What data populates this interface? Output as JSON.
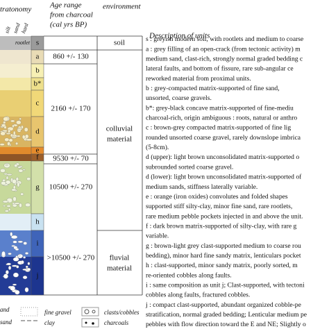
{
  "header": {
    "stratonomy": "tratonomy",
    "grain_sizes": [
      "silt",
      "sand",
      "hard"
    ],
    "rootlet": "rootlet",
    "age_heading": [
      "Age range",
      "from charcoal",
      "(cal yrs BP)"
    ],
    "environment_heading": "environment",
    "description_heading": "Description of units"
  },
  "units": [
    "s",
    "a",
    "b",
    "b*",
    "c",
    "d",
    "e",
    "f",
    "g",
    "h",
    "i",
    "j"
  ],
  "ages": [
    "860 +/- 130",
    "2160 +/- 170",
    "9530 +/- 70",
    "10500 +/- 270",
    ">10500 +/- 270"
  ],
  "environments": [
    [
      "soil"
    ],
    [
      "colluvial",
      "material"
    ],
    [
      "fluvial",
      "material"
    ]
  ],
  "descriptions": [
    "s : greyish modern soil, with rootlets and medium to coarse",
    "a : grey filling of an open-crack (from tectonic activity) m",
    "medium sand, clast-rich, strongly normal graded bedding c",
    "lateral faults, and bottom of fissure, rare sub-angular ce",
    "reworked material from proximal units.",
    "b   : grey-compacted matrix-supported of fine sand,",
    "unsorted, coarse gravels.",
    "b*:  grey-black concave matrix-supported of fine-mediu",
    "charcoal-rich, origin ambiguous : roots, natural or anthro",
    "c : brown-grey compacted matrix-supported of fine lig",
    "rounded unsorted coarse gravel, rarely downslope imbrica",
    "(5-8cm).",
    "d (upper): light brown unconsolidated matrix-supported o",
    "subrounded sorted coarse gravel.",
    "d (lower): light brown unconsolidated matrix-supported of",
    "medium sands, stiffness laterally variable.",
    "e : orange (iron oxides) convolutes and folded shapes",
    "supported stiff silty-clay, minor fine sand, rare rootlets,",
    "rare medium pebble pockets injected in and above the unit.",
    "f : dark brown matrix-supported of silty-clay, with rare g",
    "variable.",
    "g : brown-light grey clast-supported medium to coarse rou",
    "bedding), minor hard fine sandy matrix, lenticulars pocket",
    "h : clast-supported, minor sandy matrix, poorly sorted, m",
    "re-oriented cobbles along faults.",
    "i : same composition as unit j; Clast-supported, with tectoni",
    "cobbles along faults, fractured cobbles.",
    "j : compact clast-supported, abundant organized cobble-pe",
    "stratification, normal graded bedding; Lenticular medium pe",
    "pebbles with flow direction toward the E and NE; Slightly o"
  ],
  "legend": [
    "and",
    "sand",
    "fine gravel",
    "clay",
    "clasts/cobbles",
    "charcoals"
  ]
}
